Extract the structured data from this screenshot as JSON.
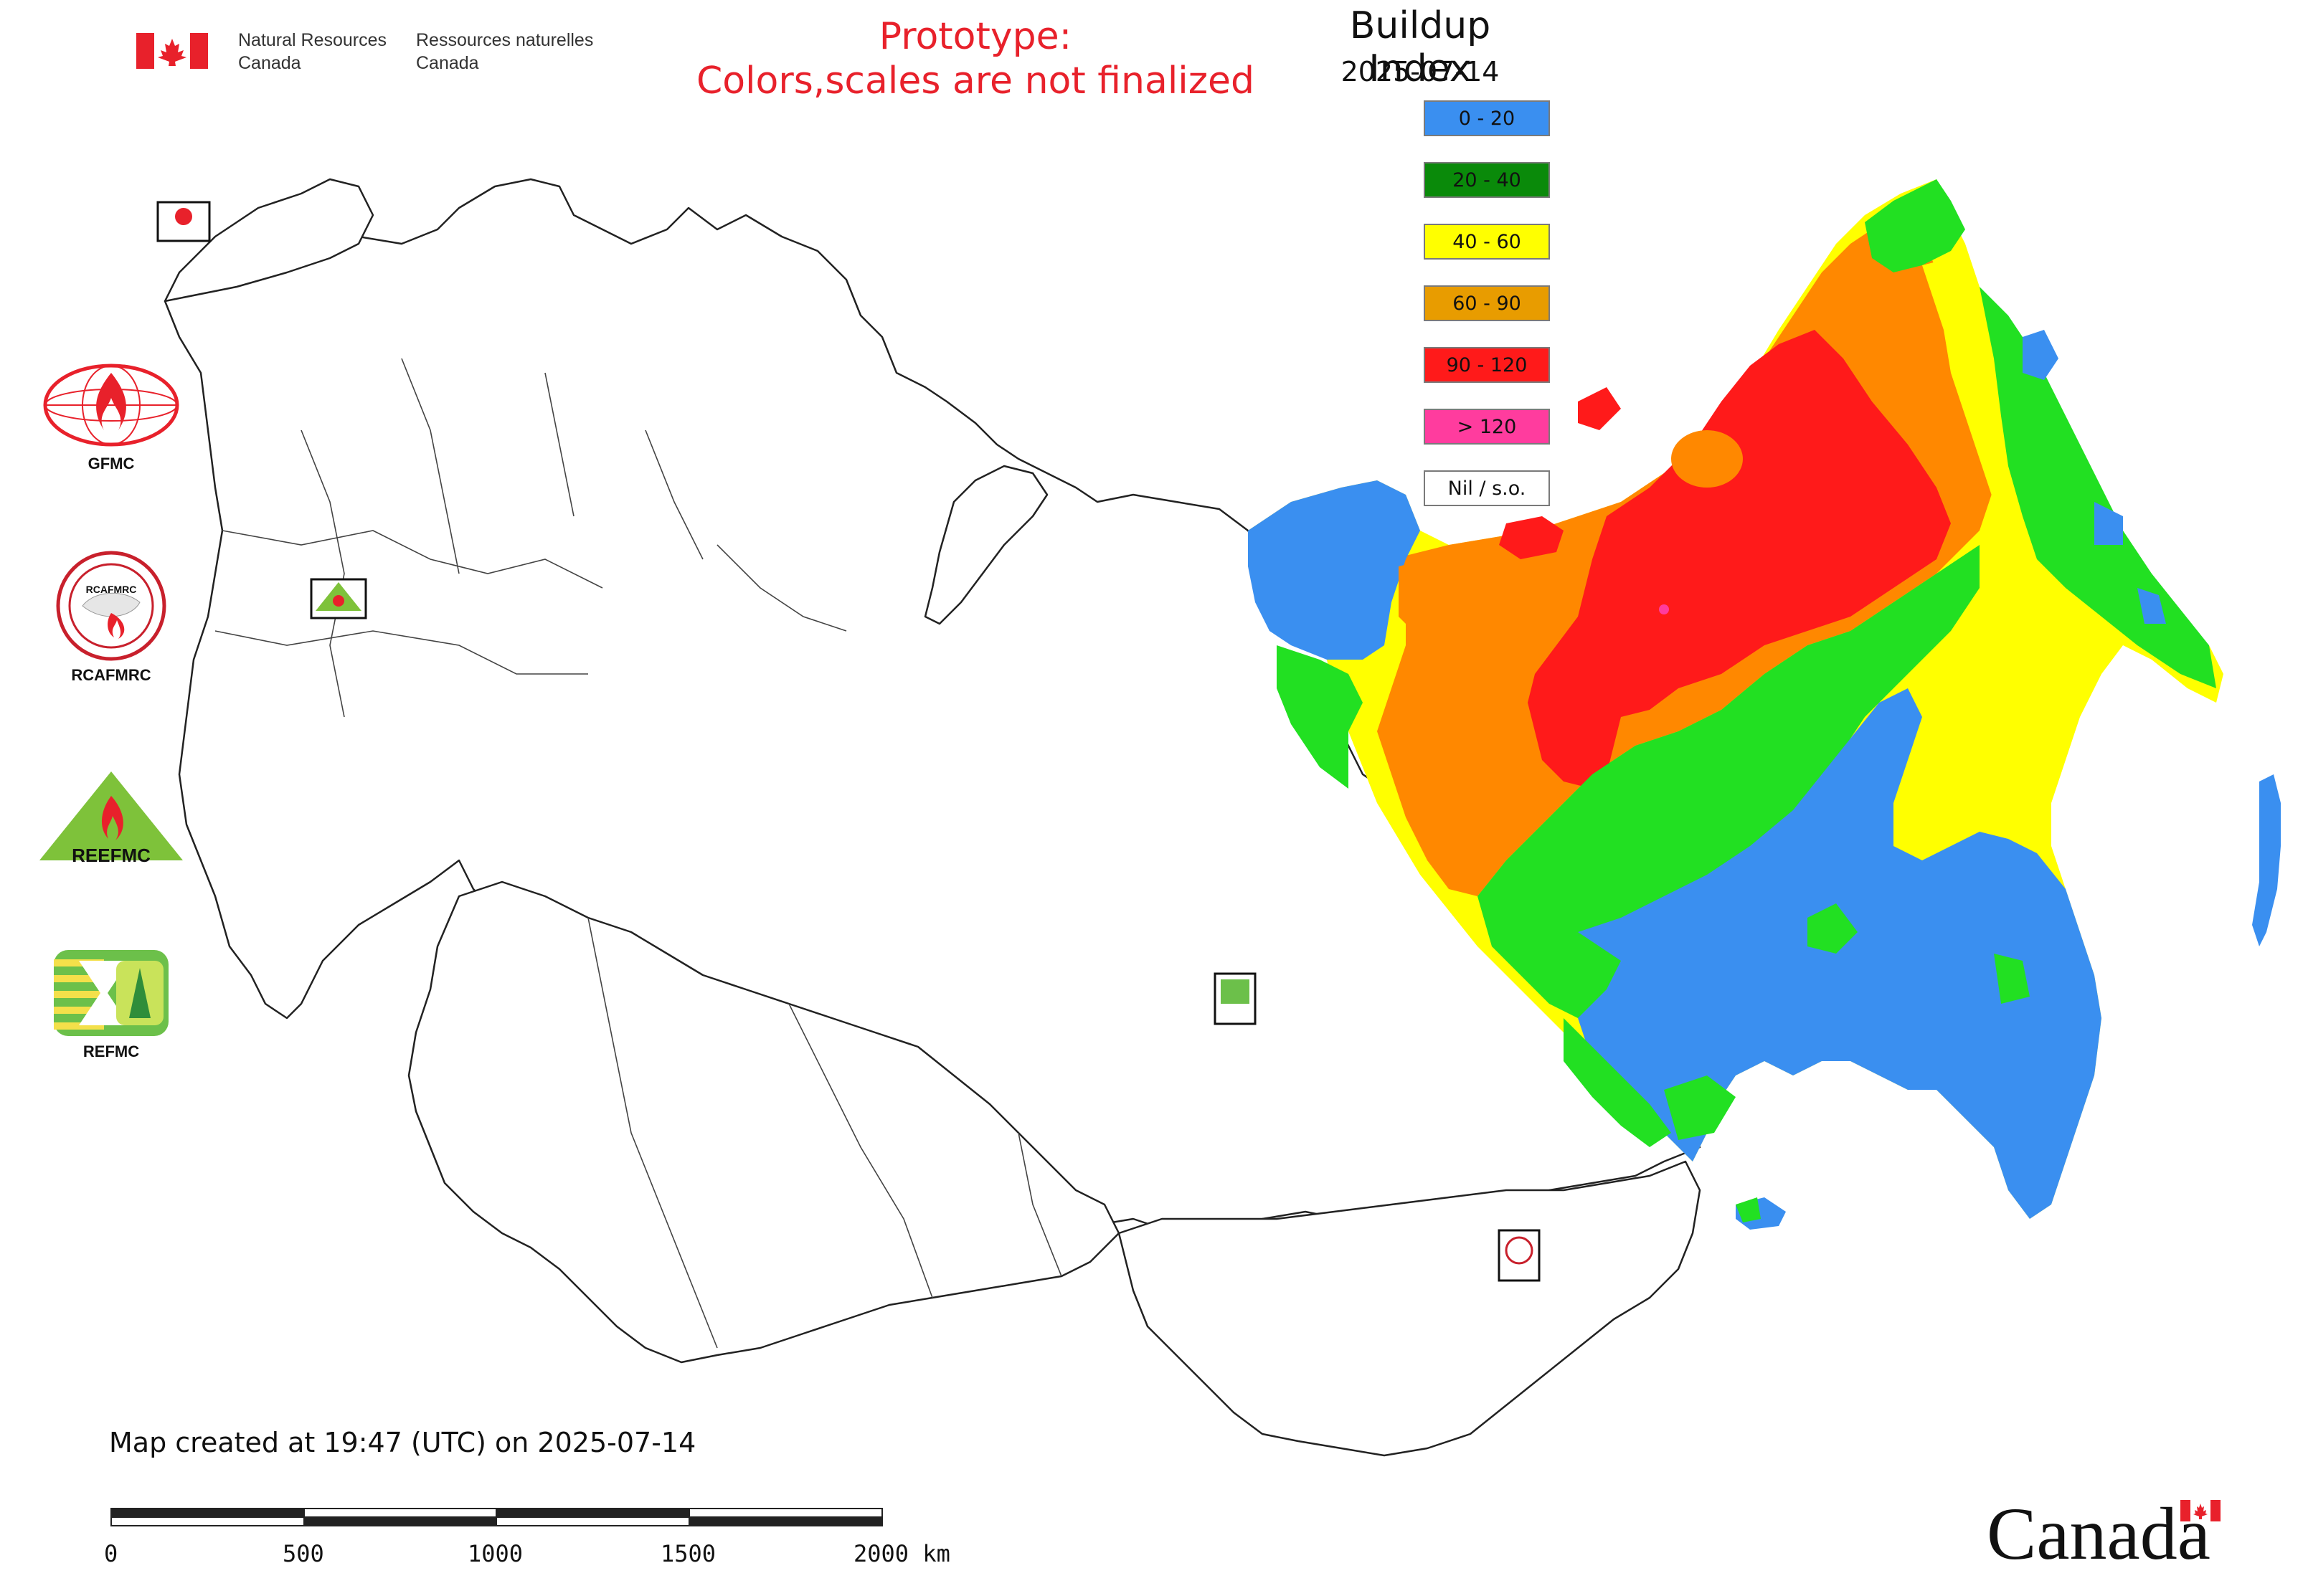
{
  "header": {
    "org_en": "Natural Resources\nCanada",
    "org_fr": "Ressources naturelles\nCanada",
    "prototype_line1": "Prototype:",
    "prototype_line2": "Colors,scales are not finalized"
  },
  "legend": {
    "title": "Buildup Index",
    "date": "2025-07-14",
    "classes": [
      {
        "label": "0 - 20",
        "color": "#3a8ff0"
      },
      {
        "label": "20 - 40",
        "color": "#0a8a0a"
      },
      {
        "label": "40 - 60",
        "color": "#ffff00"
      },
      {
        "label": "60 - 90",
        "color": "#e89c00"
      },
      {
        "label": "90 - 120",
        "color": "#ff1a1a"
      },
      {
        "label": "> 120",
        "color": "#ff3c9e"
      },
      {
        "label": "Nil / s.o.",
        "color": "#ffffff"
      }
    ]
  },
  "logos": {
    "gfmc": "GFMC",
    "rcafmrc": "RCAFMRC",
    "reefmc": "REEFMC",
    "refmc": "REFMC"
  },
  "map_badges": {
    "gfmc_small": "GFMC",
    "reefmc_small": "REEFMC",
    "refmc_small": "REFMC",
    "rcafmrc_small": "RCAFMRC"
  },
  "footer": {
    "created": "Map created at 19:47 (UTC) on 2025-07-14",
    "scale_ticks": [
      "0",
      "500",
      "1000",
      "1500",
      "2000 km"
    ]
  },
  "brand": {
    "wordmark": "Canada"
  },
  "colors": {
    "blue": "#3a8ff0",
    "green": "#22e022",
    "yellow": "#ffff00",
    "orange": "#ff8800",
    "red": "#ff1a1a",
    "pink": "#ff3c9e",
    "outline": "#222222"
  }
}
